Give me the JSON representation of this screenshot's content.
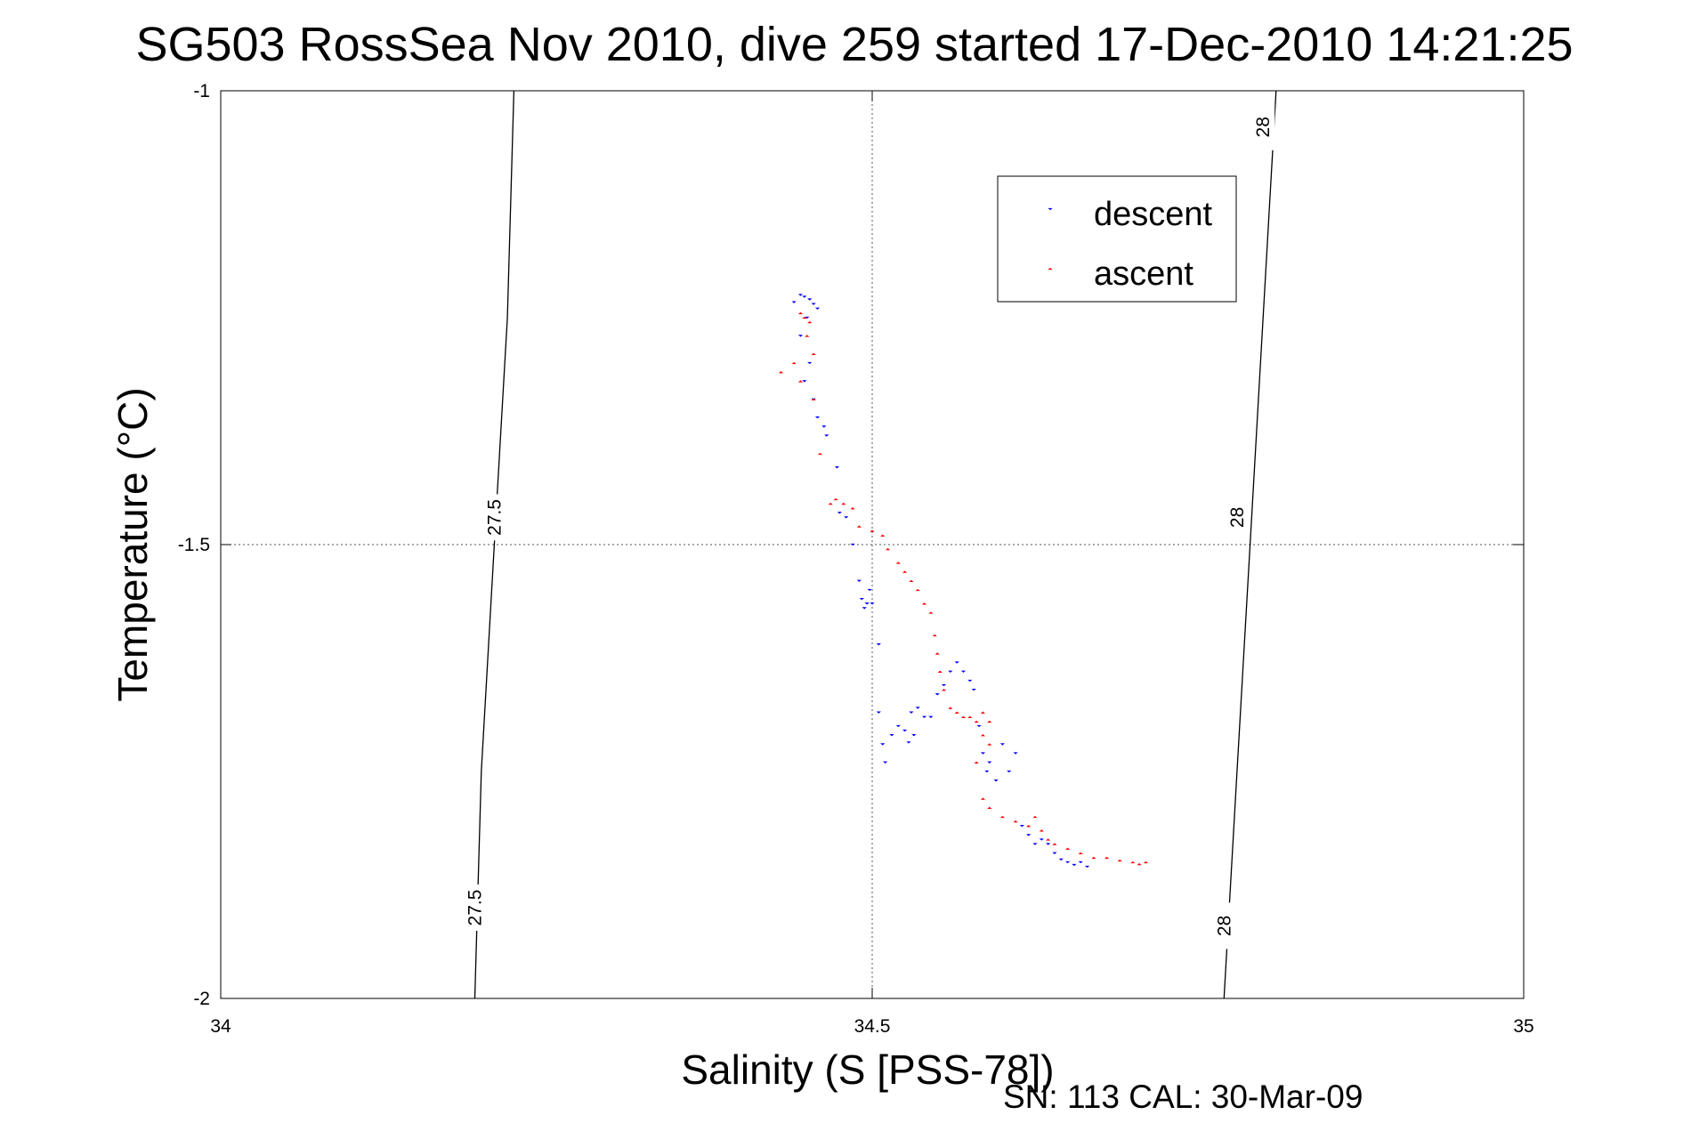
{
  "chart_data": {
    "type": "scatter",
    "title": "SG503 RossSea Nov 2010, dive 259 started 17-Dec-2010 14:21:25",
    "xlabel": "Salinity (S [PSS-78])",
    "ylabel": "Temperature (°C)",
    "xlim": [
      34,
      35
    ],
    "ylim": [
      -2,
      -1
    ],
    "x_ticks": [
      "34",
      "34.5",
      "35"
    ],
    "y_ticks": [
      "-1",
      "-1.5",
      "-2"
    ],
    "grid": true,
    "legend_position": "top-right",
    "footer": "SN: 113  CAL: 30-Mar-09",
    "density_contours": [
      {
        "label": "27.5",
        "points": [
          [
            34.195,
            -2.0
          ],
          [
            34.2,
            -1.75
          ],
          [
            34.21,
            -1.5
          ],
          [
            34.22,
            -1.25
          ],
          [
            34.225,
            -1.0
          ]
        ]
      },
      {
        "label": "28",
        "points": [
          [
            34.77,
            -2.0
          ],
          [
            34.78,
            -1.75
          ],
          [
            34.79,
            -1.5
          ],
          [
            34.8,
            -1.25
          ],
          [
            34.81,
            -1.0
          ]
        ]
      }
    ],
    "contour_labels": [
      {
        "text": "27.5",
        "x": 34.21,
        "y": -1.47
      },
      {
        "text": "27.5",
        "x": 34.195,
        "y": -1.9
      },
      {
        "text": "28",
        "x": 34.78,
        "y": -1.47
      },
      {
        "text": "28",
        "x": 34.8,
        "y": -1.04
      },
      {
        "text": "28",
        "x": 34.77,
        "y": -1.92
      }
    ],
    "series": [
      {
        "name": "descent",
        "color": "#0000ff",
        "marker": "triangle-down",
        "points": [
          [
            34.445,
            -1.225
          ],
          [
            34.448,
            -1.227
          ],
          [
            34.452,
            -1.23
          ],
          [
            34.455,
            -1.235
          ],
          [
            34.458,
            -1.24
          ],
          [
            34.44,
            -1.233
          ],
          [
            34.45,
            -1.25
          ],
          [
            34.445,
            -1.27
          ],
          [
            34.452,
            -1.3
          ],
          [
            34.448,
            -1.32
          ],
          [
            34.455,
            -1.34
          ],
          [
            34.458,
            -1.36
          ],
          [
            34.463,
            -1.37
          ],
          [
            34.465,
            -1.38
          ],
          [
            34.473,
            -1.415
          ],
          [
            34.475,
            -1.465
          ],
          [
            34.48,
            -1.47
          ],
          [
            34.485,
            -1.5
          ],
          [
            34.49,
            -1.54
          ],
          [
            34.492,
            -1.56
          ],
          [
            34.494,
            -1.57
          ],
          [
            34.496,
            -1.565
          ],
          [
            34.498,
            -1.55
          ],
          [
            34.5,
            -1.565
          ],
          [
            34.505,
            -1.61
          ],
          [
            34.505,
            -1.685
          ],
          [
            34.508,
            -1.72
          ],
          [
            34.51,
            -1.74
          ],
          [
            34.515,
            -1.71
          ],
          [
            34.52,
            -1.7
          ],
          [
            34.525,
            -1.705
          ],
          [
            34.528,
            -1.718
          ],
          [
            34.532,
            -1.71
          ],
          [
            34.53,
            -1.685
          ],
          [
            34.535,
            -1.68
          ],
          [
            34.54,
            -1.69
          ],
          [
            34.545,
            -1.69
          ],
          [
            34.55,
            -1.665
          ],
          [
            34.555,
            -1.655
          ],
          [
            34.56,
            -1.64
          ],
          [
            34.565,
            -1.63
          ],
          [
            34.57,
            -1.64
          ],
          [
            34.575,
            -1.65
          ],
          [
            34.578,
            -1.66
          ],
          [
            34.582,
            -1.7
          ],
          [
            34.585,
            -1.73
          ],
          [
            34.588,
            -1.75
          ],
          [
            34.59,
            -1.74
          ],
          [
            34.595,
            -1.76
          ],
          [
            34.6,
            -1.72
          ],
          [
            34.605,
            -1.75
          ],
          [
            34.61,
            -1.73
          ],
          [
            34.615,
            -1.81
          ],
          [
            34.62,
            -1.82
          ],
          [
            34.625,
            -1.83
          ],
          [
            34.63,
            -1.825
          ],
          [
            34.635,
            -1.83
          ],
          [
            34.64,
            -1.84
          ],
          [
            34.645,
            -1.847
          ],
          [
            34.65,
            -1.85
          ],
          [
            34.655,
            -1.853
          ],
          [
            34.66,
            -1.85
          ],
          [
            34.665,
            -1.855
          ]
        ]
      },
      {
        "name": "ascent",
        "color": "#ff0000",
        "marker": "triangle-up",
        "points": [
          [
            34.43,
            -1.31
          ],
          [
            34.44,
            -1.3
          ],
          [
            34.445,
            -1.245
          ],
          [
            34.448,
            -1.25
          ],
          [
            34.452,
            -1.255
          ],
          [
            34.45,
            -1.27
          ],
          [
            34.455,
            -1.29
          ],
          [
            34.445,
            -1.32
          ],
          [
            34.455,
            -1.34
          ],
          [
            34.46,
            -1.4
          ],
          [
            34.468,
            -1.455
          ],
          [
            34.472,
            -1.45
          ],
          [
            34.478,
            -1.455
          ],
          [
            34.485,
            -1.46
          ],
          [
            34.49,
            -1.48
          ],
          [
            34.5,
            -1.485
          ],
          [
            34.508,
            -1.49
          ],
          [
            34.512,
            -1.505
          ],
          [
            34.52,
            -1.52
          ],
          [
            34.525,
            -1.53
          ],
          [
            34.53,
            -1.54
          ],
          [
            34.535,
            -1.55
          ],
          [
            34.54,
            -1.565
          ],
          [
            34.545,
            -1.575
          ],
          [
            34.548,
            -1.6
          ],
          [
            34.55,
            -1.62
          ],
          [
            34.552,
            -1.64
          ],
          [
            34.555,
            -1.66
          ],
          [
            34.56,
            -1.68
          ],
          [
            34.565,
            -1.685
          ],
          [
            34.57,
            -1.69
          ],
          [
            34.575,
            -1.69
          ],
          [
            34.58,
            -1.695
          ],
          [
            34.585,
            -1.685
          ],
          [
            34.59,
            -1.695
          ],
          [
            34.585,
            -1.71
          ],
          [
            34.59,
            -1.72
          ],
          [
            34.58,
            -1.74
          ],
          [
            34.585,
            -1.78
          ],
          [
            34.59,
            -1.79
          ],
          [
            34.6,
            -1.8
          ],
          [
            34.61,
            -1.805
          ],
          [
            34.62,
            -1.81
          ],
          [
            34.625,
            -1.8
          ],
          [
            34.63,
            -1.815
          ],
          [
            34.635,
            -1.825
          ],
          [
            34.64,
            -1.83
          ],
          [
            34.65,
            -1.835
          ],
          [
            34.66,
            -1.84
          ],
          [
            34.67,
            -1.845
          ],
          [
            34.68,
            -1.845
          ],
          [
            34.69,
            -1.848
          ],
          [
            34.7,
            -1.85
          ],
          [
            34.705,
            -1.852
          ],
          [
            34.71,
            -1.85
          ]
        ]
      }
    ]
  }
}
